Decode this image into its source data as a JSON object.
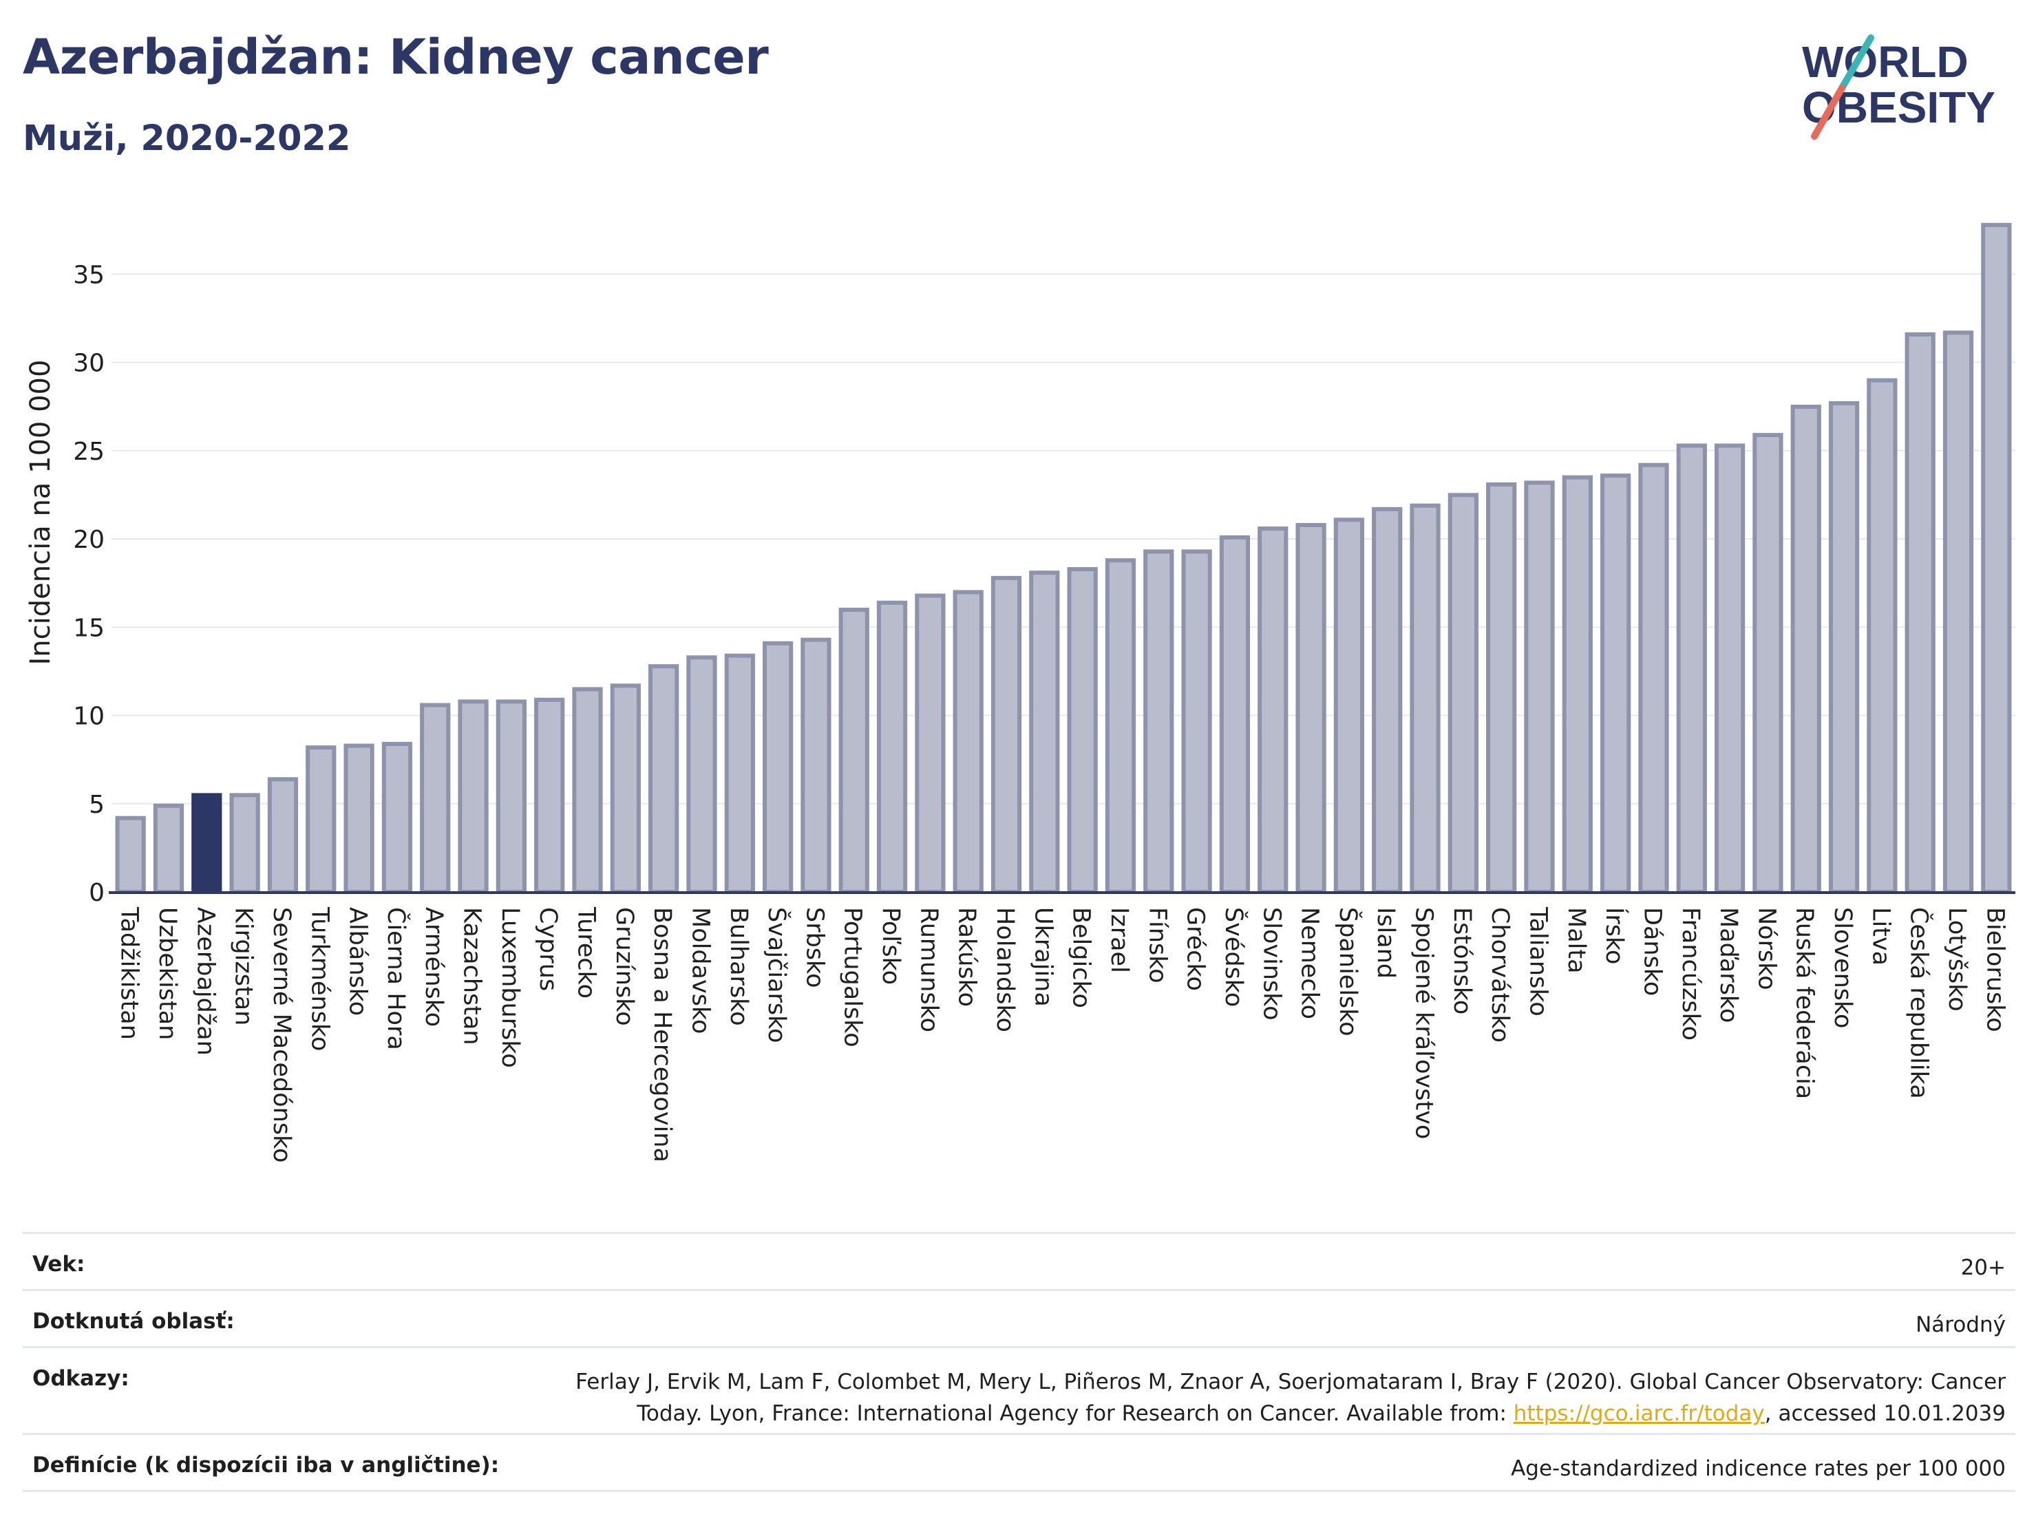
{
  "header": {
    "title": "Azerbajdžan: Kidney cancer",
    "subtitle": "Muži, 2020-2022"
  },
  "logo": {
    "line1": "WORLD",
    "line2": "OBESITY"
  },
  "colors": {
    "bar": "#b8bccc",
    "bar_edge": "#8e93ac",
    "highlight": "#2d3766",
    "title": "#2d3766",
    "slash_teal": "#3ab4b4",
    "slash_coral": "#e86a5a",
    "grid": "#e6e8ee",
    "axis": "#2d3766"
  },
  "chart_data": {
    "type": "bar",
    "ylabel": "Incidencia na 100 000",
    "ylim": [
      0,
      38
    ],
    "yticks": [
      0,
      5,
      10,
      15,
      20,
      25,
      30,
      35
    ],
    "grid": true,
    "highlight": "Azerbajdžan",
    "categories": [
      "Tadžikistan",
      "Uzbekistan",
      "Azerbajdžan",
      "Kirgizstan",
      "Severné Macedónsko",
      "Turkménsko",
      "Albánsko",
      "Čierna Hora",
      "Arménsko",
      "Kazachstan",
      "Luxembursko",
      "Cyprus",
      "Turecko",
      "Gruzínsko",
      "Bosna a Hercegovina",
      "Moldavsko",
      "Bulharsko",
      "Švajčiarsko",
      "Srbsko",
      "Portugalsko",
      "Poľsko",
      "Rumunsko",
      "Rakúsko",
      "Holandsko",
      "Ukrajina",
      "Belgicko",
      "Izrael",
      "Fínsko",
      "Grécko",
      "Švédsko",
      "Slovinsko",
      "Nemecko",
      "Španielsko",
      "Island",
      "Spojené kráľovstvo",
      "Estónsko",
      "Chorvátsko",
      "Taliansko",
      "Malta",
      "Írsko",
      "Dánsko",
      "Francúzsko",
      "Maďarsko",
      "Nórsko",
      "Ruská federácia",
      "Slovensko",
      "Litva",
      "Česká republika",
      "Lotyšsko",
      "Bielorusko"
    ],
    "values": [
      4.3,
      5.0,
      5.6,
      5.6,
      6.5,
      8.3,
      8.4,
      8.5,
      10.7,
      10.9,
      10.9,
      11.0,
      11.6,
      11.8,
      12.9,
      13.4,
      13.5,
      14.2,
      14.4,
      16.1,
      16.5,
      16.9,
      17.1,
      17.9,
      18.2,
      18.4,
      18.9,
      19.4,
      19.4,
      20.2,
      20.7,
      20.9,
      21.2,
      21.8,
      22.0,
      22.6,
      23.2,
      23.3,
      23.6,
      23.7,
      24.3,
      25.4,
      25.4,
      26.0,
      27.6,
      27.8,
      29.1,
      31.7,
      31.8,
      37.9
    ]
  },
  "meta": {
    "age_label": "Vek:",
    "age_value": "20+",
    "area_label": "Dotknutá oblasť:",
    "area_value": "Národný",
    "refs_label": "Odkazy:",
    "refs_line1": "Ferlay J, Ervik M, Lam F, Colombet M, Mery L, Piñeros M, Znaor A, Soerjomataram I, Bray F (2020). Global Cancer Observatory: Cancer",
    "refs_line2_pre": "Today. Lyon, France: International Agency for Research on Cancer. Available from: ",
    "refs_link": "https://gco.iarc.fr/today",
    "refs_line2_post": ", accessed 10.01.2039",
    "def_label": "Definície (k dispozícii iba v angličtine):",
    "def_value": "Age-standardized indicence rates per 100 000"
  }
}
